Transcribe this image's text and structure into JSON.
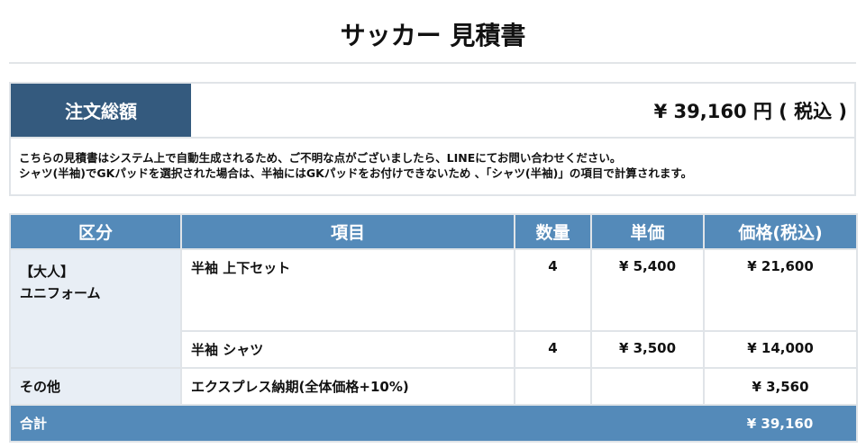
{
  "title": "サッカー 見積書",
  "summary": {
    "label": "注文総額",
    "total": "¥ 39,160 円 ( 税込 )",
    "notes": [
      "こちらの見積書はシステム上で自動生成されるため、ご不明な点がございましたら、LINEにてお問い合わせください。",
      "シャツ(半袖)でGKパッドを選択された場合は、半袖にはGKパッドをお付けできないため 、「シャツ(半袖)」の項目で計算されます。"
    ]
  },
  "table": {
    "headers": [
      "区分",
      "項目",
      "数量",
      "単価",
      "価格(税込)"
    ],
    "groups": [
      {
        "category": [
          "【大人】",
          "ユニフォーム"
        ],
        "rows": [
          {
            "item": "半袖 上下セット",
            "qty": "4",
            "unit": "¥ 5,400",
            "price": "¥ 21,600"
          },
          {
            "item": "半袖 シャツ",
            "qty": "4",
            "unit": "¥ 3,500",
            "price": "¥ 14,000"
          }
        ]
      },
      {
        "category": [
          "その他"
        ],
        "rows": [
          {
            "item": "エクスプレス納期(全体価格+10%)",
            "qty": "",
            "unit": "",
            "price": "¥ 3,560"
          }
        ]
      }
    ],
    "total": {
      "label": "合計",
      "price": "¥ 39,160"
    }
  },
  "colors": {
    "summary_header": "#345a7e",
    "table_header": "#548ab9",
    "category_bg": "#e8eef5"
  }
}
